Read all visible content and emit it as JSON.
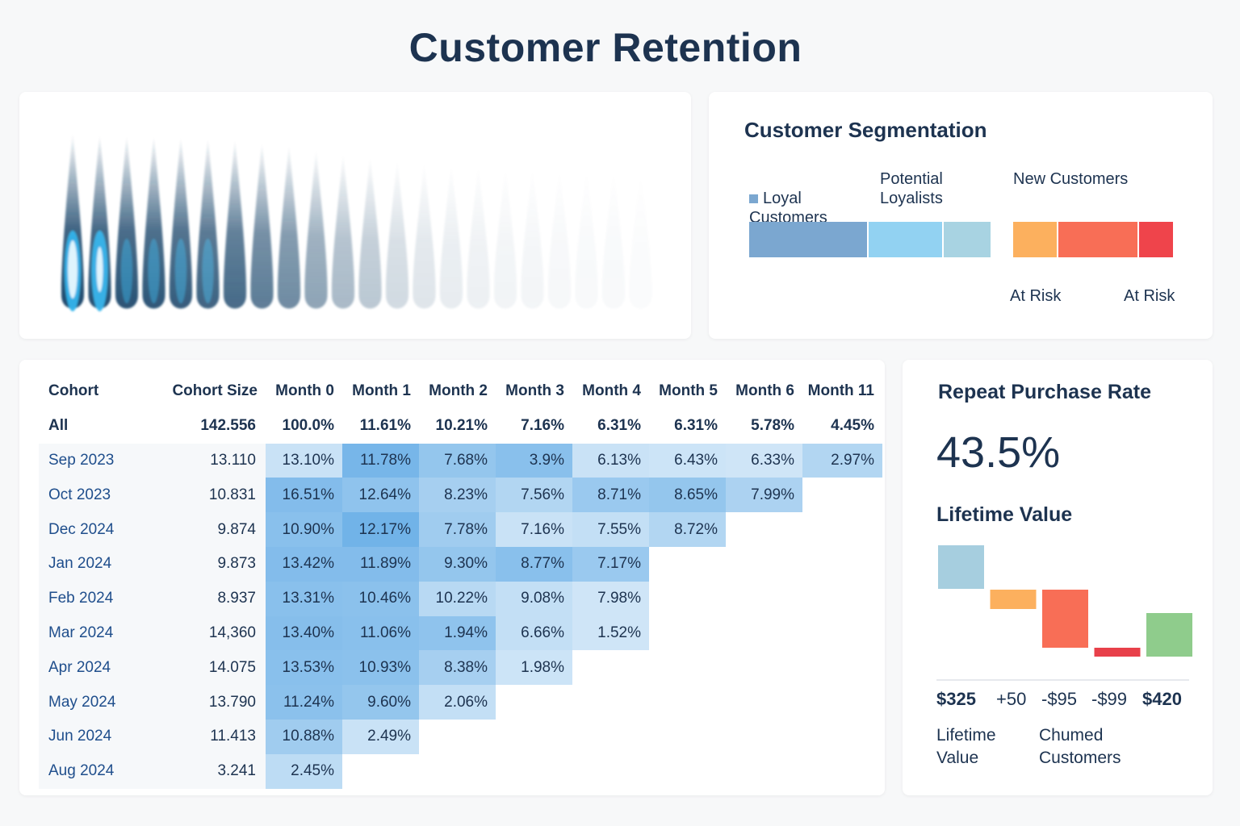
{
  "title": "Customer Retention",
  "retention_curve": {
    "intensities": [
      1.0,
      0.97,
      0.95,
      0.93,
      0.9,
      0.86,
      0.82,
      0.72,
      0.64,
      0.5,
      0.38,
      0.3,
      0.2,
      0.14,
      0.1,
      0.08,
      0.06,
      0.05,
      0.04,
      0.03,
      0.03,
      0.02
    ],
    "color_dark": "#1f4a6e",
    "color_light": "#34b4ec"
  },
  "segmentation": {
    "title": "Customer Segmentation",
    "legend": [
      "Loyal\nCustomers",
      "Potential\nLoyalists",
      "New Customers"
    ],
    "bars": [
      {
        "color": "#7ba7d0"
      },
      {
        "color": "#92d2f2"
      },
      {
        "color": "#a8d3e2"
      },
      {
        "color": "#fcb05e"
      },
      {
        "color": "#f86e56"
      },
      {
        "color": "#ef444b"
      }
    ],
    "footer": [
      "At Risk",
      "At Risk"
    ]
  },
  "cohort_table": {
    "headers": [
      "Cohort",
      "Cohort Size",
      "Month 0",
      "Month 1",
      "Month 2",
      "Month 3",
      "Month 4",
      "Month 5",
      "Month 6",
      "Month 11"
    ],
    "all_row": {
      "label": "All",
      "size": "142.556",
      "values": [
        "100.0%",
        "11.61%",
        "10.21%",
        "7.16%",
        "6.31%",
        "6.31%",
        "5.78%",
        "4.45%"
      ]
    },
    "rows": [
      {
        "label": "Sep 2023",
        "size": "13.110",
        "values": [
          "13.10%",
          "11.78%",
          "7.68%",
          "3.9%",
          "6.13%",
          "6.43%",
          "6.33%",
          "2.97%"
        ],
        "shade": [
          0.25,
          0.95,
          0.7,
          0.8,
          0.25,
          0.22,
          0.2,
          0.45
        ]
      },
      {
        "label": "Oct 2023",
        "size": "10.831",
        "values": [
          "16.51%",
          "12.64%",
          "8.23%",
          "7.56%",
          "8.71%",
          "8.65%",
          "7.99%"
        ],
        "shade": [
          0.85,
          0.75,
          0.55,
          0.45,
          0.65,
          0.7,
          0.5
        ]
      },
      {
        "label": "Dec 2024",
        "size": "9.874",
        "values": [
          "10.90%",
          "12.17%",
          "7.78%",
          "7.16%",
          "7.55%",
          "8.72%"
        ],
        "shade": [
          0.8,
          1.0,
          0.6,
          0.25,
          0.3,
          0.45
        ]
      },
      {
        "label": "Jan 2024",
        "size": "9.873",
        "values": [
          "13.42%",
          "11.89%",
          "9.30%",
          "8.77%",
          "7.17%"
        ],
        "shade": [
          0.85,
          0.85,
          0.7,
          0.8,
          0.65
        ]
      },
      {
        "label": "Feb 2024",
        "size": "8.937",
        "values": [
          "13.31%",
          "10.46%",
          "10.22%",
          "9.08%",
          "7.98%"
        ],
        "shade": [
          0.8,
          0.78,
          0.4,
          0.3,
          0.2
        ]
      },
      {
        "label": "Mar 2024",
        "size": "14,360",
        "values": [
          "13.40%",
          "11.06%",
          "1.94%",
          "6.66%",
          "1.52%"
        ],
        "shade": [
          0.82,
          0.8,
          0.75,
          0.3,
          0.2
        ]
      },
      {
        "label": "Apr 2024",
        "size": "14.075",
        "values": [
          "13.53%",
          "10.93%",
          "8.38%",
          "1.98%"
        ],
        "shade": [
          0.8,
          0.78,
          0.55,
          0.22
        ]
      },
      {
        "label": "May 2024",
        "size": "13.790",
        "values": [
          "11.24%",
          "9.60%",
          "2.06%"
        ],
        "shade": [
          0.78,
          0.7,
          0.3
        ]
      },
      {
        "label": "Jun 2024",
        "size": "11.413",
        "values": [
          "10.88%",
          "2.49%"
        ],
        "shade": [
          0.6,
          0.25
        ]
      },
      {
        "label": "Aug 2024",
        "size": "3.241",
        "values": [
          "2.45%"
        ],
        "shade": [
          0.35
        ]
      }
    ]
  },
  "kpi": {
    "repeat_title": "Repeat Purchase Rate",
    "repeat_value": "43.5%",
    "ltv_title": "Lifetime Value",
    "waterfall": {
      "type": "bar",
      "labels": [
        "$325",
        "+50",
        "-$95",
        "-$99",
        "$420"
      ],
      "values": [
        325,
        50,
        -95,
        -99,
        420
      ],
      "colors": [
        "#a6cedf",
        "#fcb05e",
        "#f86e56",
        "#e8404a",
        "#8fcc8c"
      ],
      "captions": [
        "Lifetime\nValue",
        "Chumed\nCustomers"
      ]
    }
  },
  "chart_data": [
    {
      "type": "heatmap",
      "title": "",
      "x": [
        "Month 0",
        "Month 1",
        "Month 2",
        "Month 3",
        "Month 4",
        "Month 5",
        "Month 6",
        "Month 11"
      ],
      "y": [
        "All",
        "Sep 2023",
        "Oct 2023",
        "Dec 2024",
        "Jan 2024",
        "Feb 2024",
        "Mar 2024",
        "Apr 2024",
        "May 2024",
        "Jun 2024",
        "Aug 2024"
      ],
      "values": [
        [
          100.0,
          11.61,
          10.21,
          7.16,
          6.31,
          6.31,
          5.78,
          4.45
        ],
        [
          13.1,
          11.78,
          7.68,
          3.9,
          6.13,
          6.43,
          6.33,
          2.97
        ],
        [
          16.51,
          12.64,
          8.23,
          7.56,
          8.71,
          8.65,
          7.99
        ],
        [
          10.9,
          12.17,
          7.78,
          7.16,
          7.55,
          8.72
        ],
        [
          13.42,
          11.89,
          9.3,
          8.77,
          7.17
        ],
        [
          13.31,
          10.46,
          10.22,
          9.08,
          7.98
        ],
        [
          13.4,
          11.06,
          1.94,
          6.66,
          1.52
        ],
        [
          13.53,
          10.93,
          8.38,
          1.98
        ],
        [
          11.24,
          9.6,
          2.06
        ],
        [
          10.88,
          2.49
        ],
        [
          2.45
        ]
      ]
    },
    {
      "type": "bar",
      "title": "Lifetime Value",
      "categories": [
        "$325",
        "+50",
        "-$95",
        "-$99",
        "$420"
      ],
      "values": [
        325,
        50,
        -95,
        -99,
        420
      ]
    }
  ]
}
